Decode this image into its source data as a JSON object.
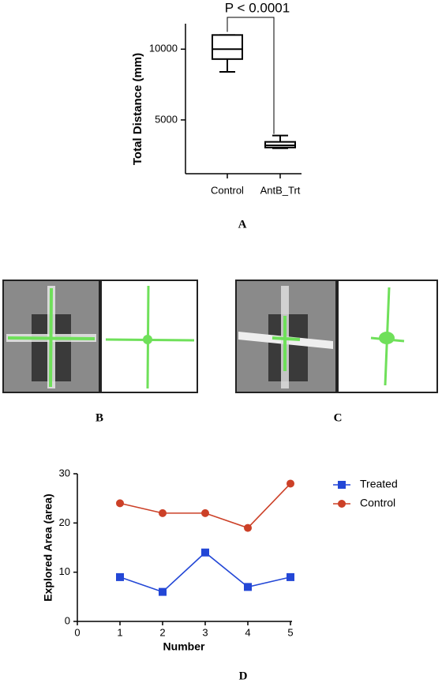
{
  "chart_data": [
    {
      "type": "box",
      "panel_label": "A",
      "annotation": "P < 0.0001",
      "y_label": "Total Distance (mm)",
      "categories": [
        "Control",
        "AntB_Trt"
      ],
      "boxes": [
        {
          "min": 8400,
          "q1": 9300,
          "median": 10000,
          "q3": 11000,
          "max": 11000
        },
        {
          "min": 3000,
          "q1": 3050,
          "median": 3200,
          "q3": 3450,
          "max": 3900
        }
      ],
      "color": "#000000",
      "ylim": [
        1200,
        11800
      ],
      "yticks": [
        5000,
        10000
      ]
    },
    {
      "type": "line",
      "panel_label": "D",
      "x_label": "Number",
      "y_label": "Explored Area (area)",
      "x": [
        1,
        2,
        3,
        4,
        5
      ],
      "series": [
        {
          "name": "Treated",
          "color": "#2347d6",
          "marker": "square",
          "values": [
            9,
            6,
            14,
            7,
            9
          ]
        },
        {
          "name": "Control",
          "color": "#cc4027",
          "marker": "circle",
          "values": [
            24,
            22,
            22,
            19,
            28
          ]
        }
      ],
      "xlim": [
        0,
        5
      ],
      "xticks": [
        0,
        1,
        2,
        3,
        4,
        5
      ],
      "ylim": [
        0,
        30
      ],
      "yticks": [
        0,
        10,
        20,
        30
      ],
      "legend": "upper right"
    }
  ],
  "image_panels": [
    {
      "label": "B"
    },
    {
      "label": "C"
    }
  ]
}
